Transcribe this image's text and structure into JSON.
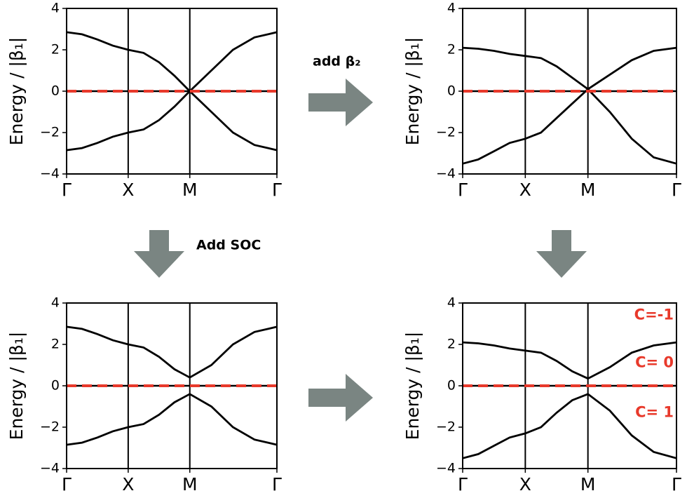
{
  "labels": [
    "add β₂",
    "Add SOC"
  ],
  "chart_data": [
    {
      "type": "line",
      "ylabel": "Energy / |β₁|",
      "xlim": [
        0,
        3.414
      ],
      "ylim": [
        -4,
        4
      ],
      "xticks": [
        {
          "value": 0,
          "label": "Γ"
        },
        {
          "value": 1,
          "label": "X"
        },
        {
          "value": 2,
          "label": "M"
        },
        {
          "value": 3.414,
          "label": "Γ"
        }
      ],
      "yticks": [
        {
          "value": -4,
          "label": "−4"
        },
        {
          "value": -2,
          "label": "−2"
        },
        0,
        2,
        4
      ],
      "xgrid": true,
      "x": [
        0,
        0.25,
        0.5,
        0.75,
        1,
        1.25,
        1.5,
        1.75,
        2,
        2.35,
        2.7,
        3.05,
        3.414
      ],
      "series": [
        {
          "color": "#000000",
          "values": [
            2.85,
            2.75,
            2.5,
            2.2,
            2.0,
            1.85,
            1.4,
            0.75,
            0,
            1.0,
            2.0,
            2.6,
            2.85
          ]
        },
        {
          "color": "#000000",
          "values": [
            -2.85,
            -2.75,
            -2.5,
            -2.2,
            -2.0,
            -1.85,
            -1.4,
            -0.75,
            0,
            -1.0,
            -2.0,
            -2.6,
            -2.85
          ]
        },
        {
          "color": "#e8392b",
          "dashed": true,
          "values": [
            0,
            0,
            0,
            0,
            0,
            0,
            0,
            0,
            0,
            0,
            0,
            0,
            0
          ]
        }
      ]
    },
    {
      "type": "line",
      "ylabel": "Energy / |β₁|",
      "xlim": [
        0,
        3.414
      ],
      "ylim": [
        -4,
        4
      ],
      "xticks": [
        {
          "value": 0,
          "label": "Γ"
        },
        {
          "value": 1,
          "label": "X"
        },
        {
          "value": 2,
          "label": "M"
        },
        {
          "value": 3.414,
          "label": "Γ"
        }
      ],
      "yticks": [
        {
          "value": -4,
          "label": "−4"
        },
        {
          "value": -2,
          "label": "−2"
        },
        0,
        2,
        4
      ],
      "xgrid": true,
      "x": [
        0,
        0.25,
        0.5,
        0.75,
        1,
        1.25,
        1.5,
        1.75,
        2,
        2.35,
        2.7,
        3.05,
        3.414
      ],
      "series": [
        {
          "color": "#000000",
          "values": [
            2.1,
            2.05,
            1.95,
            1.8,
            1.7,
            1.6,
            1.2,
            0.65,
            0.1,
            0.8,
            1.5,
            1.95,
            2.1
          ]
        },
        {
          "color": "#000000",
          "values": [
            -3.5,
            -3.3,
            -2.9,
            -2.5,
            -2.3,
            -2.0,
            -1.3,
            -0.6,
            0.1,
            -1.0,
            -2.3,
            -3.2,
            -3.5
          ]
        },
        {
          "color": "#e8392b",
          "dashed": true,
          "values": [
            0,
            0,
            0,
            0,
            0,
            0,
            0,
            0,
            0,
            0,
            0,
            0,
            0
          ]
        }
      ]
    },
    {
      "type": "line",
      "ylabel": "Energy / |β₁|",
      "xlim": [
        0,
        3.414
      ],
      "ylim": [
        -4,
        4
      ],
      "xticks": [
        {
          "value": 0,
          "label": "Γ"
        },
        {
          "value": 1,
          "label": "X"
        },
        {
          "value": 2,
          "label": "M"
        },
        {
          "value": 3.414,
          "label": "Γ"
        }
      ],
      "yticks": [
        {
          "value": -4,
          "label": "−4"
        },
        {
          "value": -2,
          "label": "−2"
        },
        0,
        2,
        4
      ],
      "xgrid": true,
      "x": [
        0,
        0.25,
        0.5,
        0.75,
        1,
        1.25,
        1.5,
        1.75,
        2,
        2.35,
        2.7,
        3.05,
        3.414
      ],
      "series": [
        {
          "color": "#000000",
          "values": [
            2.85,
            2.75,
            2.5,
            2.2,
            2.0,
            1.85,
            1.4,
            0.8,
            0.4,
            1.0,
            2.0,
            2.6,
            2.85
          ]
        },
        {
          "color": "#000000",
          "values": [
            -2.85,
            -2.75,
            -2.5,
            -2.2,
            -2.0,
            -1.85,
            -1.4,
            -0.8,
            -0.4,
            -1.0,
            -2.0,
            -2.6,
            -2.85
          ]
        },
        {
          "color": "#e8392b",
          "dashed": true,
          "values": [
            0,
            0,
            0,
            0,
            0,
            0,
            0,
            0,
            0,
            0,
            0,
            0,
            0
          ]
        }
      ]
    },
    {
      "type": "line",
      "ylabel": "Energy / |β₁|",
      "xlim": [
        0,
        3.414
      ],
      "ylim": [
        -4,
        4
      ],
      "xticks": [
        {
          "value": 0,
          "label": "Γ"
        },
        {
          "value": 1,
          "label": "X"
        },
        {
          "value": 2,
          "label": "M"
        },
        {
          "value": 3.414,
          "label": "Γ"
        }
      ],
      "yticks": [
        {
          "value": -4,
          "label": "−4"
        },
        {
          "value": -2,
          "label": "−2"
        },
        0,
        2,
        4
      ],
      "xgrid": true,
      "x": [
        0,
        0.25,
        0.5,
        0.75,
        1,
        1.25,
        1.5,
        1.75,
        2,
        2.35,
        2.7,
        3.05,
        3.414
      ],
      "series": [
        {
          "color": "#000000",
          "values": [
            2.1,
            2.05,
            1.95,
            1.8,
            1.7,
            1.6,
            1.2,
            0.7,
            0.35,
            0.9,
            1.6,
            1.95,
            2.1
          ]
        },
        {
          "color": "#000000",
          "values": [
            -3.5,
            -3.3,
            -2.9,
            -2.5,
            -2.3,
            -2.0,
            -1.3,
            -0.7,
            -0.4,
            -1.2,
            -2.4,
            -3.2,
            -3.5
          ]
        },
        {
          "color": "#e8392b",
          "dashed": true,
          "values": [
            0,
            0,
            0,
            0,
            0,
            0,
            0,
            0,
            0,
            0,
            0,
            0,
            0
          ]
        }
      ],
      "annotations": [
        "C=-1",
        "C= 0",
        "C= 1"
      ]
    }
  ]
}
